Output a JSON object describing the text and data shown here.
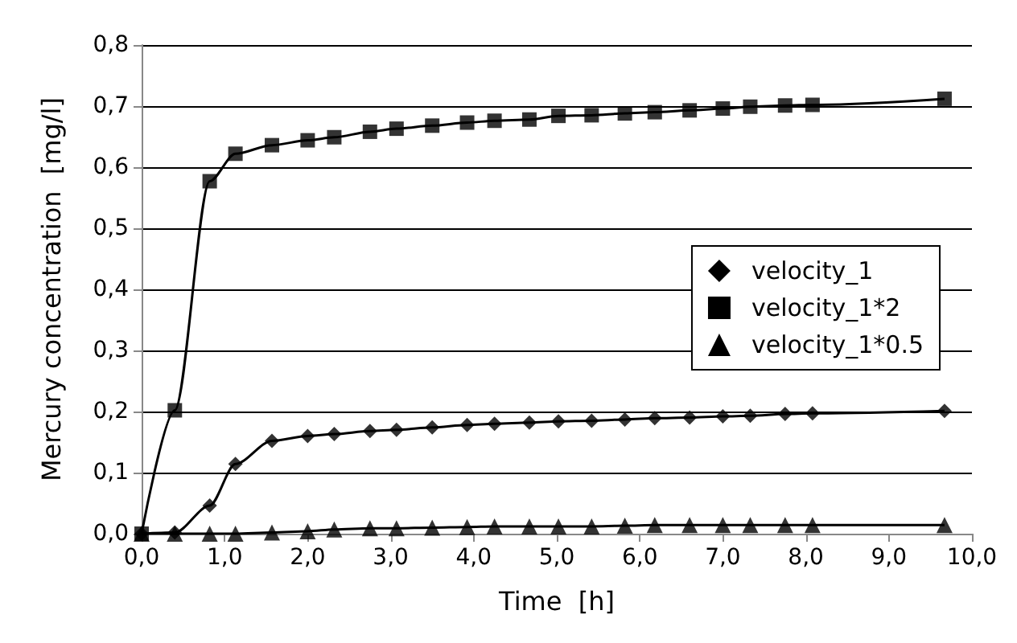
{
  "chart_data": {
    "type": "line",
    "xlabel": "Time  [h]",
    "ylabel": "Mercury concentration  [mg/l]",
    "x": [
      0,
      0.4,
      0.82,
      1.13,
      1.57,
      2.0,
      2.32,
      2.75,
      3.07,
      3.5,
      3.92,
      4.25,
      4.67,
      5.02,
      5.42,
      5.82,
      6.18,
      6.6,
      7.0,
      7.33,
      7.75,
      8.08,
      9.67
    ],
    "series": [
      {
        "name": "velocity_1",
        "color": "#000000",
        "marker": "diamond",
        "values": [
          0,
          0.002,
          0.046,
          0.114,
          0.152,
          0.16,
          0.163,
          0.168,
          0.17,
          0.174,
          0.178,
          0.18,
          0.182,
          0.184,
          0.185,
          0.187,
          0.189,
          0.19,
          0.192,
          0.193,
          0.196,
          0.197,
          0.201
        ]
      },
      {
        "name": "velocity_1*2",
        "color": "#000000",
        "marker": "square",
        "values": [
          0,
          0.202,
          0.577,
          0.622,
          0.636,
          0.644,
          0.649,
          0.658,
          0.663,
          0.668,
          0.673,
          0.676,
          0.678,
          0.684,
          0.685,
          0.688,
          0.69,
          0.693,
          0.696,
          0.699,
          0.701,
          0.702,
          0.712
        ]
      },
      {
        "name": "velocity_1*0.5",
        "color": "#000000",
        "marker": "triangle",
        "values": [
          0,
          0,
          0,
          0,
          0.002,
          0.004,
          0.007,
          0.009,
          0.009,
          0.01,
          0.011,
          0.012,
          0.012,
          0.012,
          0.012,
          0.013,
          0.014,
          0.014,
          0.014,
          0.014,
          0.014,
          0.014,
          0.014
        ]
      }
    ],
    "xlim": [
      0,
      10
    ],
    "xticks": [
      {
        "value": 0,
        "label": "0,0"
      },
      {
        "value": 1,
        "label": "1,0"
      },
      {
        "value": 2,
        "label": "2,0"
      },
      {
        "value": 3,
        "label": "3,0"
      },
      {
        "value": 4,
        "label": "4,0"
      },
      {
        "value": 5,
        "label": "5,0"
      },
      {
        "value": 6,
        "label": "6,0"
      },
      {
        "value": 7,
        "label": "7,0"
      },
      {
        "value": 8,
        "label": "8,0"
      },
      {
        "value": 9,
        "label": "9,0"
      },
      {
        "value": 10,
        "label": "10,0"
      }
    ],
    "ylim": [
      0,
      0.8
    ],
    "yticks": [
      {
        "value": 0,
        "label": "0,0"
      },
      {
        "value": 0.1,
        "label": "0,1"
      },
      {
        "value": 0.2,
        "label": "0,2"
      },
      {
        "value": 0.3,
        "label": "0,3"
      },
      {
        "value": 0.4,
        "label": "0,4"
      },
      {
        "value": 0.5,
        "label": "0,5"
      },
      {
        "value": 0.6,
        "label": "0,6"
      },
      {
        "value": 0.7,
        "label": "0,7"
      },
      {
        "value": 0.8,
        "label": "0,8"
      }
    ],
    "grid": "y",
    "legend": "right",
    "line_style": "solid"
  }
}
